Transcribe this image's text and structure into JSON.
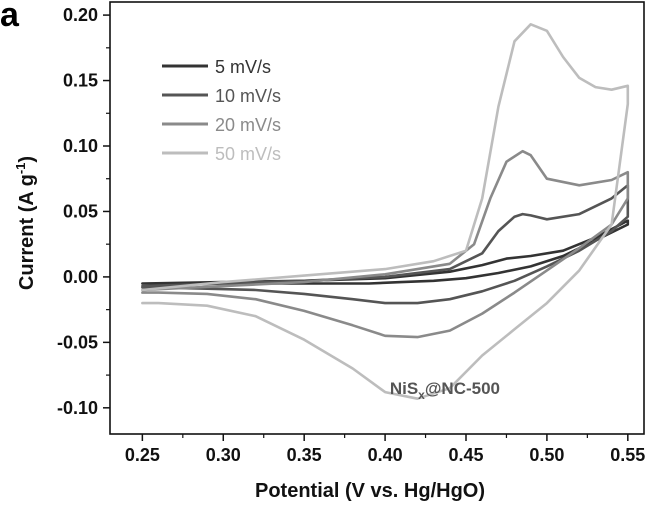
{
  "panel_label": "a",
  "chart_data": {
    "type": "line",
    "title": "",
    "xlabel": "Potential (V vs. Hg/HgO)",
    "ylabel": "Current (A g",
    "ylabel_sup": "-1",
    "ylabel_close": ")",
    "xlim": [
      0.23,
      0.56
    ],
    "ylim": [
      -0.12,
      0.21
    ],
    "x_ticks": [
      0.25,
      0.3,
      0.35,
      0.4,
      0.45,
      0.5,
      0.55
    ],
    "x_tick_labels": [
      "0.25",
      "0.30",
      "0.35",
      "0.40",
      "0.45",
      "0.50",
      "0.55"
    ],
    "y_ticks": [
      -0.1,
      -0.05,
      0.0,
      0.05,
      0.1,
      0.15,
      0.2
    ],
    "y_tick_labels": [
      "-0.10",
      "-0.05",
      "0.00",
      "0.05",
      "0.10",
      "0.15",
      "0.20"
    ],
    "grid": false,
    "legend_position": "top-left",
    "annotation": {
      "text": "NiS",
      "sub": "x",
      "rest": "@NC-500"
    },
    "series": [
      {
        "name": "5 mV/s",
        "color": "#333333",
        "x": [
          0.25,
          0.3,
          0.35,
          0.4,
          0.44,
          0.46,
          0.475,
          0.49,
          0.51,
          0.53,
          0.55,
          0.55,
          0.53,
          0.51,
          0.49,
          0.47,
          0.45,
          0.43,
          0.41,
          0.39,
          0.36,
          0.33,
          0.3,
          0.27,
          0.25
        ],
        "y": [
          -0.005,
          -0.004,
          -0.003,
          -0.001,
          0.004,
          0.009,
          0.014,
          0.016,
          0.02,
          0.03,
          0.043,
          0.04,
          0.028,
          0.016,
          0.008,
          0.003,
          -0.001,
          -0.003,
          -0.004,
          -0.005,
          -0.005,
          -0.005,
          -0.005,
          -0.005,
          -0.005
        ]
      },
      {
        "name": "10 mV/s",
        "color": "#555555",
        "x": [
          0.25,
          0.3,
          0.35,
          0.4,
          0.44,
          0.46,
          0.47,
          0.48,
          0.485,
          0.49,
          0.5,
          0.52,
          0.54,
          0.55,
          0.55,
          0.54,
          0.52,
          0.5,
          0.48,
          0.46,
          0.44,
          0.42,
          0.4,
          0.38,
          0.35,
          0.32,
          0.29,
          0.26,
          0.25
        ],
        "y": [
          -0.007,
          -0.005,
          -0.003,
          0.0,
          0.006,
          0.018,
          0.035,
          0.046,
          0.048,
          0.047,
          0.044,
          0.048,
          0.06,
          0.07,
          0.046,
          0.035,
          0.02,
          0.008,
          -0.003,
          -0.011,
          -0.017,
          -0.02,
          -0.02,
          -0.017,
          -0.013,
          -0.01,
          -0.009,
          -0.008,
          -0.008
        ]
      },
      {
        "name": "20 mV/s",
        "color": "#8a8a8a",
        "x": [
          0.25,
          0.3,
          0.35,
          0.4,
          0.44,
          0.455,
          0.465,
          0.475,
          0.485,
          0.49,
          0.5,
          0.52,
          0.54,
          0.55,
          0.55,
          0.54,
          0.52,
          0.5,
          0.48,
          0.46,
          0.44,
          0.42,
          0.4,
          0.38,
          0.35,
          0.32,
          0.29,
          0.26,
          0.25
        ],
        "y": [
          -0.01,
          -0.007,
          -0.004,
          0.002,
          0.01,
          0.025,
          0.06,
          0.088,
          0.096,
          0.093,
          0.075,
          0.07,
          0.074,
          0.08,
          0.06,
          0.04,
          0.022,
          0.005,
          -0.012,
          -0.028,
          -0.041,
          -0.046,
          -0.045,
          -0.037,
          -0.026,
          -0.017,
          -0.013,
          -0.012,
          -0.012
        ]
      },
      {
        "name": "50 mV/s",
        "color": "#bdbdbd",
        "x": [
          0.25,
          0.3,
          0.35,
          0.4,
          0.43,
          0.45,
          0.46,
          0.47,
          0.48,
          0.49,
          0.5,
          0.51,
          0.52,
          0.53,
          0.54,
          0.55,
          0.55,
          0.54,
          0.52,
          0.5,
          0.48,
          0.46,
          0.44,
          0.42,
          0.4,
          0.38,
          0.35,
          0.32,
          0.29,
          0.26,
          0.25
        ],
        "y": [
          -0.01,
          -0.004,
          0.001,
          0.006,
          0.012,
          0.02,
          0.06,
          0.13,
          0.18,
          0.193,
          0.188,
          0.168,
          0.152,
          0.145,
          0.143,
          0.146,
          0.132,
          0.04,
          0.005,
          -0.02,
          -0.04,
          -0.06,
          -0.085,
          -0.093,
          -0.088,
          -0.07,
          -0.048,
          -0.03,
          -0.022,
          -0.02,
          -0.02
        ]
      }
    ]
  }
}
